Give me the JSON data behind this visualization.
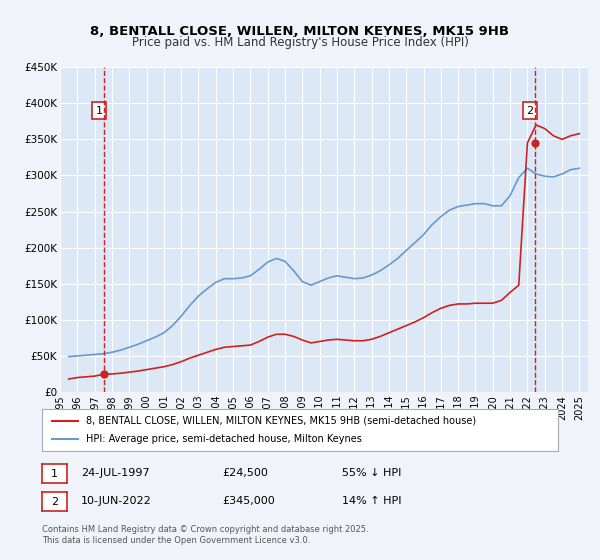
{
  "title": "8, BENTALL CLOSE, WILLEN, MILTON KEYNES, MK15 9HB",
  "subtitle": "Price paid vs. HM Land Registry's House Price Index (HPI)",
  "hpi_color": "#6699cc",
  "price_color": "#cc2222",
  "dashed_color": "#cc2222",
  "background_color": "#f0f4fa",
  "plot_bg_color": "#dce8f5",
  "grid_color": "#ffffff",
  "ylabel": "",
  "xlabel": "",
  "ylim": [
    0,
    450000
  ],
  "xlim": [
    1995,
    2025.5
  ],
  "yticks": [
    0,
    50000,
    100000,
    150000,
    200000,
    250000,
    300000,
    350000,
    400000,
    450000
  ],
  "ytick_labels": [
    "£0",
    "£50K",
    "£100K",
    "£150K",
    "£200K",
    "£250K",
    "£300K",
    "£350K",
    "£400K",
    "£450K"
  ],
  "xticks": [
    1995,
    1996,
    1997,
    1998,
    1999,
    2000,
    2001,
    2002,
    2003,
    2004,
    2005,
    2006,
    2007,
    2008,
    2009,
    2010,
    2011,
    2012,
    2013,
    2014,
    2015,
    2016,
    2017,
    2018,
    2019,
    2020,
    2021,
    2022,
    2023,
    2024,
    2025
  ],
  "sale1_x": 1997.55,
  "sale1_y": 24500,
  "sale2_x": 2022.44,
  "sale2_y": 345000,
  "legend_entries": [
    "8, BENTALL CLOSE, WILLEN, MILTON KEYNES, MK15 9HB (semi-detached house)",
    "HPI: Average price, semi-detached house, Milton Keynes"
  ],
  "table_rows": [
    {
      "num": "1",
      "date": "24-JUL-1997",
      "price": "£24,500",
      "hpi": "55% ↓ HPI"
    },
    {
      "num": "2",
      "date": "10-JUN-2022",
      "price": "£345,000",
      "hpi": "14% ↑ HPI"
    }
  ],
  "footer": "Contains HM Land Registry data © Crown copyright and database right 2025.\nThis data is licensed under the Open Government Licence v3.0.",
  "hpi_data": {
    "years": [
      1995.5,
      1996.0,
      1996.5,
      1997.0,
      1997.5,
      1998.0,
      1998.5,
      1999.0,
      1999.5,
      2000.0,
      2000.5,
      2001.0,
      2001.5,
      2002.0,
      2002.5,
      2003.0,
      2003.5,
      2004.0,
      2004.5,
      2005.0,
      2005.5,
      2006.0,
      2006.5,
      2007.0,
      2007.5,
      2008.0,
      2008.5,
      2009.0,
      2009.5,
      2010.0,
      2010.5,
      2011.0,
      2011.5,
      2012.0,
      2012.5,
      2013.0,
      2013.5,
      2014.0,
      2014.5,
      2015.0,
      2015.5,
      2016.0,
      2016.5,
      2017.0,
      2017.5,
      2018.0,
      2018.5,
      2019.0,
      2019.5,
      2020.0,
      2020.5,
      2021.0,
      2021.5,
      2022.0,
      2022.5,
      2023.0,
      2023.5,
      2024.0,
      2024.5,
      2025.0
    ],
    "values": [
      49000,
      50000,
      51000,
      52000,
      53000,
      55000,
      58000,
      62000,
      66000,
      71000,
      76000,
      82000,
      92000,
      105000,
      120000,
      133000,
      143000,
      152000,
      157000,
      157000,
      158000,
      161000,
      170000,
      180000,
      185000,
      181000,
      168000,
      153000,
      148000,
      153000,
      158000,
      161000,
      159000,
      157000,
      158000,
      162000,
      168000,
      176000,
      185000,
      196000,
      207000,
      218000,
      232000,
      243000,
      252000,
      257000,
      259000,
      261000,
      261000,
      258000,
      258000,
      272000,
      297000,
      310000,
      302000,
      299000,
      298000,
      302000,
      308000,
      310000
    ]
  },
  "price_data": {
    "years": [
      1995.5,
      1996.0,
      1996.5,
      1997.0,
      1997.5,
      1998.0,
      1998.5,
      1999.0,
      1999.5,
      2000.0,
      2000.5,
      2001.0,
      2001.5,
      2002.0,
      2002.5,
      2003.0,
      2003.5,
      2004.0,
      2004.5,
      2005.0,
      2005.5,
      2006.0,
      2006.5,
      2007.0,
      2007.5,
      2008.0,
      2008.5,
      2009.0,
      2009.5,
      2010.0,
      2010.5,
      2011.0,
      2011.5,
      2012.0,
      2012.5,
      2013.0,
      2013.5,
      2014.0,
      2014.5,
      2015.0,
      2015.5,
      2016.0,
      2016.5,
      2017.0,
      2017.5,
      2018.0,
      2018.5,
      2019.0,
      2019.5,
      2020.0,
      2020.5,
      2021.0,
      2021.5,
      2022.0,
      2022.5,
      2023.0,
      2023.5,
      2024.0,
      2024.5,
      2025.0
    ],
    "values": [
      18000,
      20000,
      21000,
      22000,
      24500,
      25000,
      26000,
      27500,
      29000,
      31000,
      33000,
      35000,
      38000,
      42000,
      47000,
      51000,
      55000,
      59000,
      62000,
      63000,
      64000,
      65000,
      70000,
      76000,
      80000,
      80000,
      77000,
      72000,
      68000,
      70000,
      72000,
      73000,
      72000,
      71000,
      71000,
      73000,
      77000,
      82000,
      87000,
      92000,
      97000,
      103000,
      110000,
      116000,
      120000,
      122000,
      122000,
      123000,
      123000,
      123000,
      127000,
      138000,
      148000,
      345000,
      370000,
      365000,
      355000,
      350000,
      355000,
      358000
    ]
  }
}
